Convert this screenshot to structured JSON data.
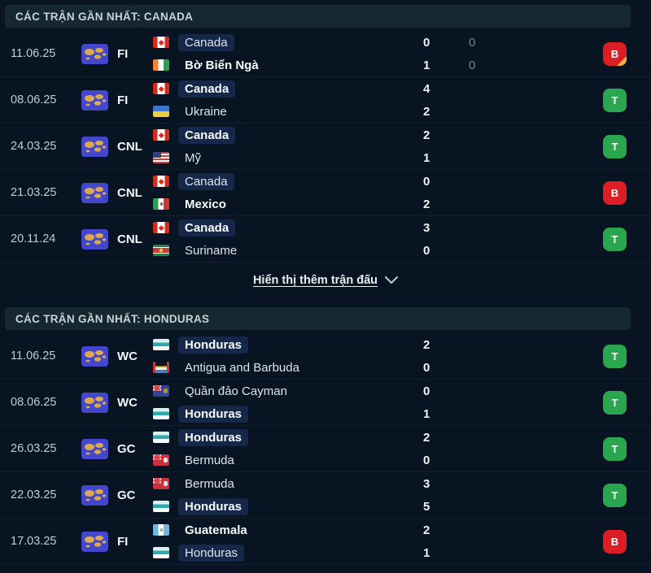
{
  "colors": {
    "page_bg": "#081421",
    "band_bg": "#152731",
    "highlight_pill": "#16284a",
    "win_green": "#2aa74e",
    "loss_red": "#dd1d24",
    "fold_yellow": "#f0b43e",
    "competition_icon_bg": "#4347cc"
  },
  "badges": {
    "win": {
      "letter": "T",
      "color": "#2aa74e"
    },
    "loss": {
      "letter": "B",
      "color": "#dd1d24"
    }
  },
  "link": {
    "label": "Hiển thị thêm trận đấu",
    "chevron_icon": "chevron-down"
  },
  "sections": [
    {
      "title": "CÁC TRẬN GẦN NHẤT: CANADA",
      "show_more": true,
      "matches": [
        {
          "date": "11.06.25",
          "competition": "FI",
          "lines": [
            {
              "team": "Canada",
              "flag": "canada",
              "highlight": true,
              "bold": false,
              "score": "0",
              "score2": "0"
            },
            {
              "team": "Bờ Biển Ngà",
              "flag": "ivory-coast",
              "highlight": false,
              "bold": true,
              "score": "1",
              "score2": "0"
            }
          ],
          "result": "loss",
          "fold": true
        },
        {
          "date": "08.06.25",
          "competition": "FI",
          "lines": [
            {
              "team": "Canada",
              "flag": "canada",
              "highlight": true,
              "bold": true,
              "score": "4"
            },
            {
              "team": "Ukraine",
              "flag": "ukraine",
              "highlight": false,
              "bold": false,
              "score": "2"
            }
          ],
          "result": "win",
          "fold": false
        },
        {
          "date": "24.03.25",
          "competition": "CNL",
          "lines": [
            {
              "team": "Canada",
              "flag": "canada",
              "highlight": true,
              "bold": true,
              "score": "2"
            },
            {
              "team": "Mỹ",
              "flag": "usa",
              "highlight": false,
              "bold": false,
              "score": "1"
            }
          ],
          "result": "win",
          "fold": false
        },
        {
          "date": "21.03.25",
          "competition": "CNL",
          "lines": [
            {
              "team": "Canada",
              "flag": "canada",
              "highlight": true,
              "bold": false,
              "score": "0"
            },
            {
              "team": "Mexico",
              "flag": "mexico",
              "highlight": false,
              "bold": true,
              "score": "2"
            }
          ],
          "result": "loss",
          "fold": false
        },
        {
          "date": "20.11.24",
          "competition": "CNL",
          "lines": [
            {
              "team": "Canada",
              "flag": "canada",
              "highlight": true,
              "bold": true,
              "score": "3"
            },
            {
              "team": "Suriname",
              "flag": "suriname",
              "highlight": false,
              "bold": false,
              "score": "0"
            }
          ],
          "result": "win",
          "fold": false
        }
      ]
    },
    {
      "title": "CÁC TRẬN GẦN NHẤT: HONDURAS",
      "show_more": false,
      "matches": [
        {
          "date": "11.06.25",
          "competition": "WC",
          "lines": [
            {
              "team": "Honduras",
              "flag": "honduras",
              "highlight": true,
              "bold": true,
              "score": "2"
            },
            {
              "team": "Antigua and Barbuda",
              "flag": "antigua",
              "highlight": false,
              "bold": false,
              "score": "0"
            }
          ],
          "result": "win",
          "fold": false
        },
        {
          "date": "08.06.25",
          "competition": "WC",
          "lines": [
            {
              "team": "Quần đảo Cayman",
              "flag": "cayman",
              "highlight": false,
              "bold": false,
              "score": "0"
            },
            {
              "team": "Honduras",
              "flag": "honduras",
              "highlight": true,
              "bold": true,
              "score": "1"
            }
          ],
          "result": "win",
          "fold": false
        },
        {
          "date": "26.03.25",
          "competition": "GC",
          "lines": [
            {
              "team": "Honduras",
              "flag": "honduras",
              "highlight": true,
              "bold": true,
              "score": "2"
            },
            {
              "team": "Bermuda",
              "flag": "bermuda",
              "highlight": false,
              "bold": false,
              "score": "0"
            }
          ],
          "result": "win",
          "fold": false
        },
        {
          "date": "22.03.25",
          "competition": "GC",
          "lines": [
            {
              "team": "Bermuda",
              "flag": "bermuda",
              "highlight": false,
              "bold": false,
              "score": "3"
            },
            {
              "team": "Honduras",
              "flag": "honduras",
              "highlight": true,
              "bold": true,
              "score": "5"
            }
          ],
          "result": "win",
          "fold": false
        },
        {
          "date": "17.03.25",
          "competition": "FI",
          "lines": [
            {
              "team": "Guatemala",
              "flag": "guatemala",
              "highlight": false,
              "bold": true,
              "score": "2"
            },
            {
              "team": "Honduras",
              "flag": "honduras",
              "highlight": true,
              "bold": false,
              "score": "1"
            }
          ],
          "result": "loss",
          "fold": false
        }
      ]
    }
  ]
}
